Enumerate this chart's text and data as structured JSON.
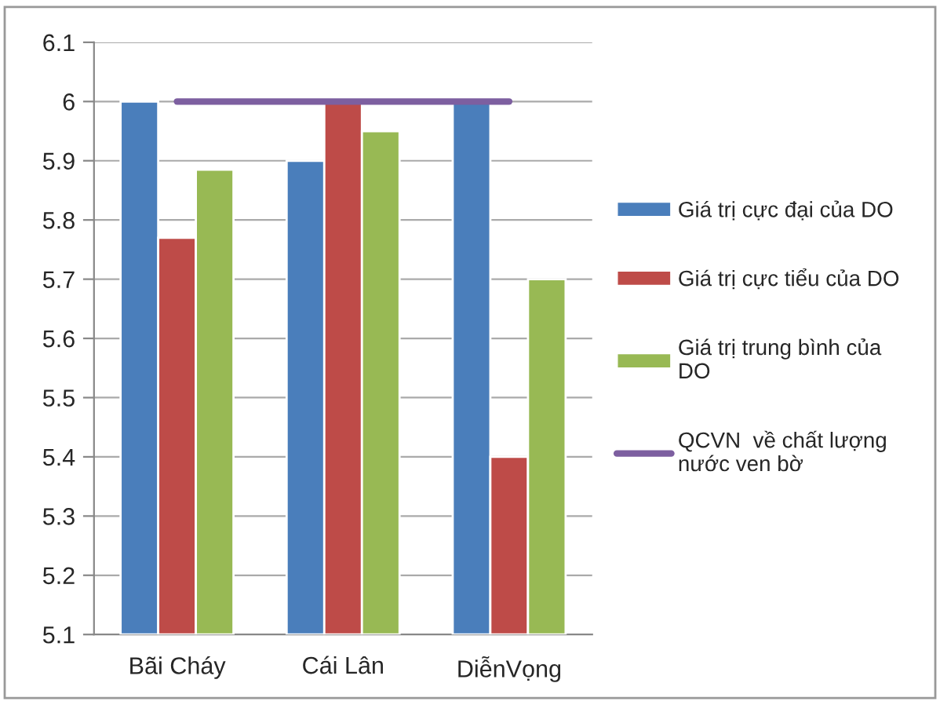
{
  "chart_data": {
    "type": "bar",
    "categories": [
      "Bãi Cháy",
      "Cái Lân",
      "DiễnVọng"
    ],
    "series": [
      {
        "name": "Giá trị cực đại của DO",
        "color": "#4a7ebb",
        "values": [
          6.0,
          5.9,
          6.0
        ]
      },
      {
        "name": "Giá trị cực tiểu của DO",
        "color": "#be4b48",
        "values": [
          5.77,
          6.0,
          5.4
        ]
      },
      {
        "name": "Giá trị trung bình của DO",
        "color": "#98b954",
        "values": [
          5.885,
          5.95,
          5.7
        ]
      },
      {
        "name": "QCVN  về chất lượng nước ven bờ",
        "type": "line",
        "color": "#7d5fa0",
        "values": [
          6.0,
          6.0,
          6.0
        ]
      }
    ],
    "ylim": [
      5.1,
      6.1
    ],
    "yticks": [
      5.1,
      5.2,
      5.3,
      5.4,
      5.5,
      5.6,
      5.7,
      5.8,
      5.9,
      6,
      6.1
    ],
    "grid": "y",
    "legend": "right"
  }
}
